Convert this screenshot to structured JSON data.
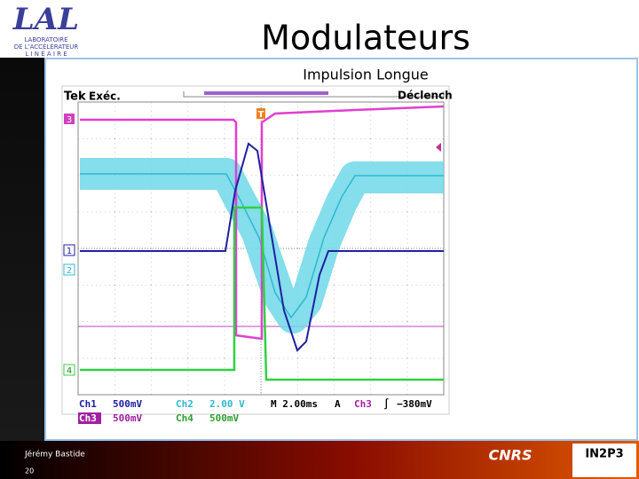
{
  "header": {
    "title": "Modulateurs",
    "subtitle": "Impulsion Longue",
    "logo": "LAL",
    "logo_caption": [
      "LABORATOIRE",
      "DE L'ACCÉLÉRATEUR",
      "L I N É A I R E"
    ]
  },
  "scope": {
    "brand": "Tek",
    "mode": "Exéc.",
    "trigger_status": "Déclench",
    "trigger_marker": "T",
    "channel_markers": [
      "1",
      "2",
      "3",
      "4"
    ],
    "readout": [
      [
        "Ch1",
        "500mV",
        "Ch2",
        "2.00 V",
        "M 2.00ms",
        "A",
        "Ch3",
        "∫",
        "−380mV"
      ],
      [
        "Ch3",
        "500mV",
        "Ch4",
        "500mV"
      ]
    ]
  },
  "footer": {
    "author": "Jérémy Bastide",
    "page": "20",
    "logo_right": "IN2P3",
    "logo_cnrs": "CNRS"
  }
}
